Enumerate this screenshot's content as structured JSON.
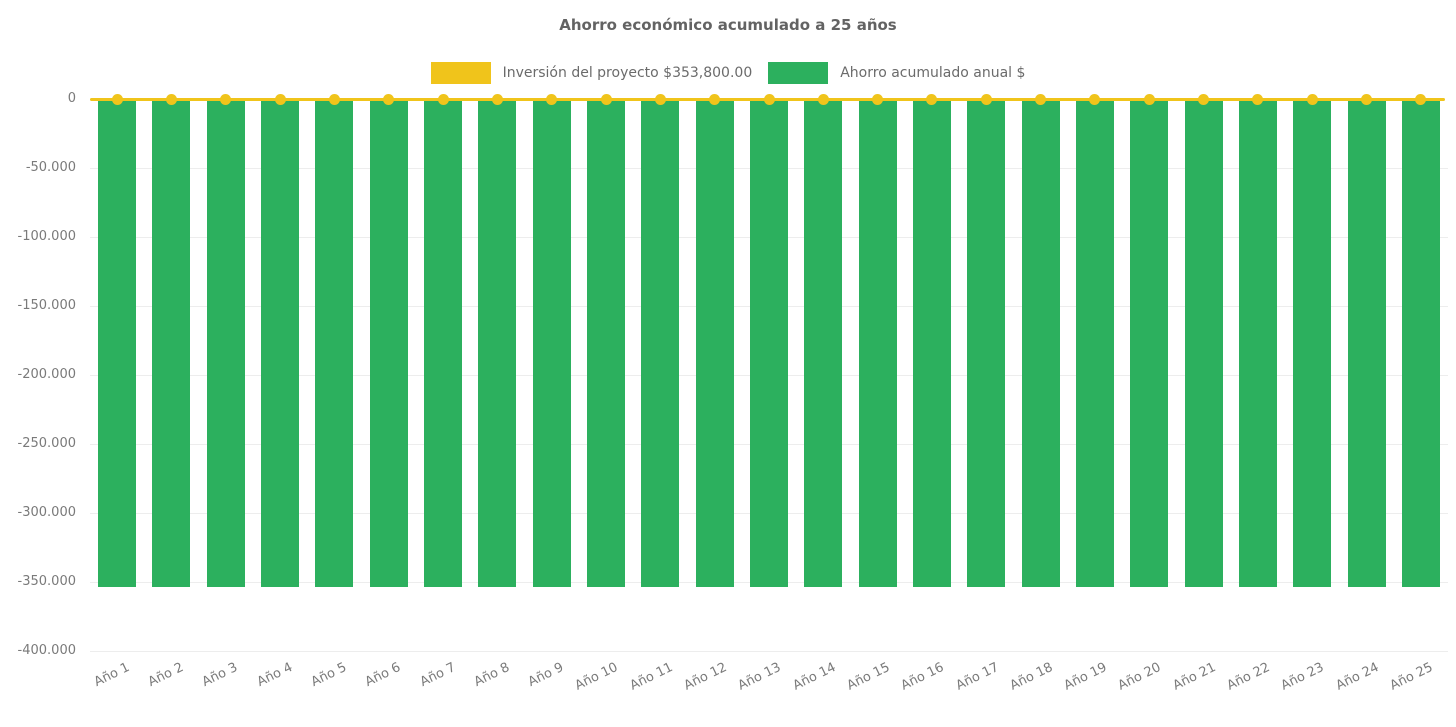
{
  "chart_data": {
    "type": "bar",
    "title": "Ahorro económico acumulado a 25 años",
    "legend_position": "top",
    "grid": true,
    "categories": [
      "Año 1",
      "Año 2",
      "Año 3",
      "Año 4",
      "Año 5",
      "Año 6",
      "Año 7",
      "Año 8",
      "Año 9",
      "Año 10",
      "Año 11",
      "Año 12",
      "Año 13",
      "Año 14",
      "Año 15",
      "Año 16",
      "Año 17",
      "Año 18",
      "Año 19",
      "Año 20",
      "Año 21",
      "Año 22",
      "Año 23",
      "Año 24",
      "Año 25"
    ],
    "series": [
      {
        "name": "Inversión del proyecto $353,800.00",
        "type": "line",
        "color": "#F0C41B",
        "values": [
          0,
          0,
          0,
          0,
          0,
          0,
          0,
          0,
          0,
          0,
          0,
          0,
          0,
          0,
          0,
          0,
          0,
          0,
          0,
          0,
          0,
          0,
          0,
          0,
          0
        ]
      },
      {
        "name": "Ahorro acumulado anual $",
        "type": "bar",
        "color": "#2CB05E",
        "values": [
          -353800,
          -353800,
          -353800,
          -353800,
          -353800,
          -353800,
          -353800,
          -353800,
          -353800,
          -353800,
          -353800,
          -353800,
          -353800,
          -353800,
          -353800,
          -353800,
          -353800,
          -353800,
          -353800,
          -353800,
          -353800,
          -353800,
          -353800,
          -353800,
          -353800
        ]
      }
    ],
    "y_axis": {
      "min": -400000,
      "max": 0,
      "tick_step": 50000,
      "tick_labels": [
        "0",
        "-50.000",
        "-100.000",
        "-150.000",
        "-200.000",
        "-250.000",
        "-300.000",
        "-350.000",
        "-400.000"
      ]
    }
  },
  "colors": {
    "background": "#ffffff",
    "grid": "#ededed",
    "title_text": "#636363",
    "tick_text": "#7a7a7a",
    "legend_text": "#6b6b6b"
  }
}
